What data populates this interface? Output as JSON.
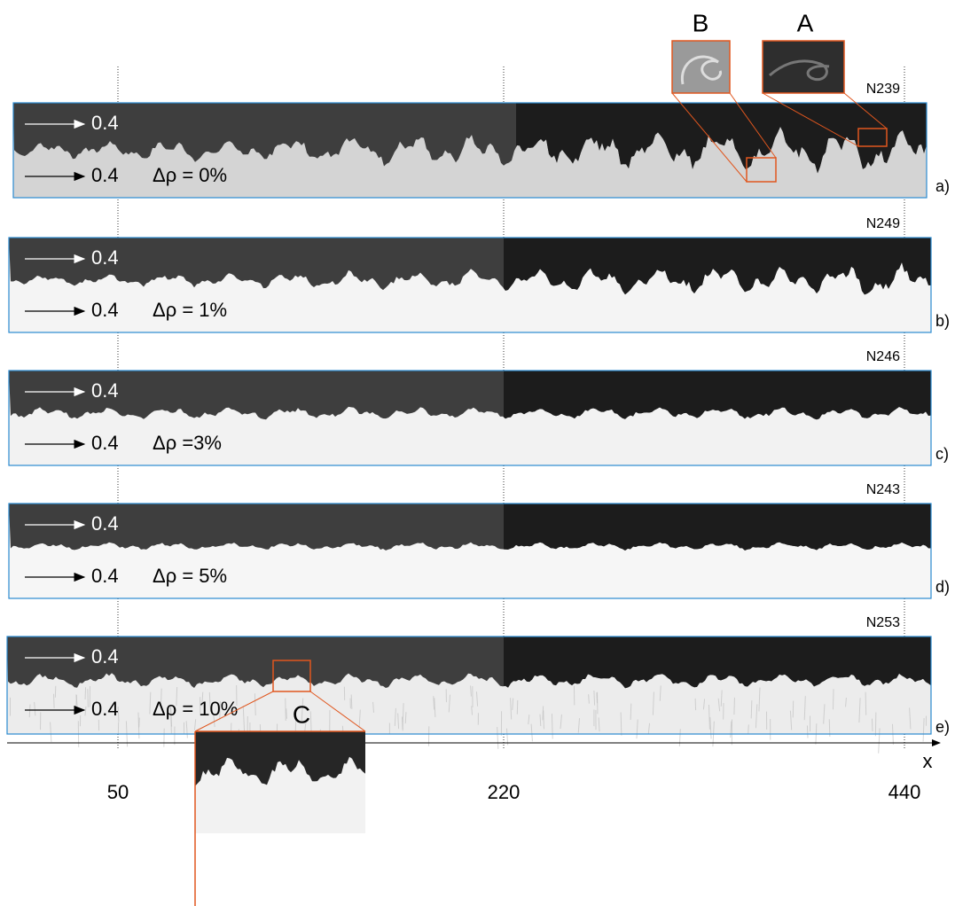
{
  "insets": [
    {
      "label": "B"
    },
    {
      "label": "A"
    },
    {
      "label": "C"
    }
  ],
  "panels": [
    {
      "run": "N239",
      "upper_speed": "0.4",
      "lower_speed": "0.4",
      "density_difference": "Δρ = 0%",
      "label": "a)"
    },
    {
      "run": "N249",
      "upper_speed": "0.4",
      "lower_speed": "0.4",
      "density_difference": "Δρ = 1%",
      "label": "b)"
    },
    {
      "run": "N246",
      "upper_speed": "0.4",
      "lower_speed": "0.4",
      "density_difference": "Δρ =3%",
      "label": "c)"
    },
    {
      "run": "N243",
      "upper_speed": "0.4",
      "lower_speed": "0.4",
      "density_difference": "Δρ = 5%",
      "label": "d)"
    },
    {
      "run": "N253",
      "upper_speed": "0.4",
      "lower_speed": "0.4",
      "density_difference": "Δρ = 10%",
      "label": "e)"
    }
  ],
  "axis": {
    "label": "x",
    "ticks": [
      50,
      220,
      440
    ]
  }
}
